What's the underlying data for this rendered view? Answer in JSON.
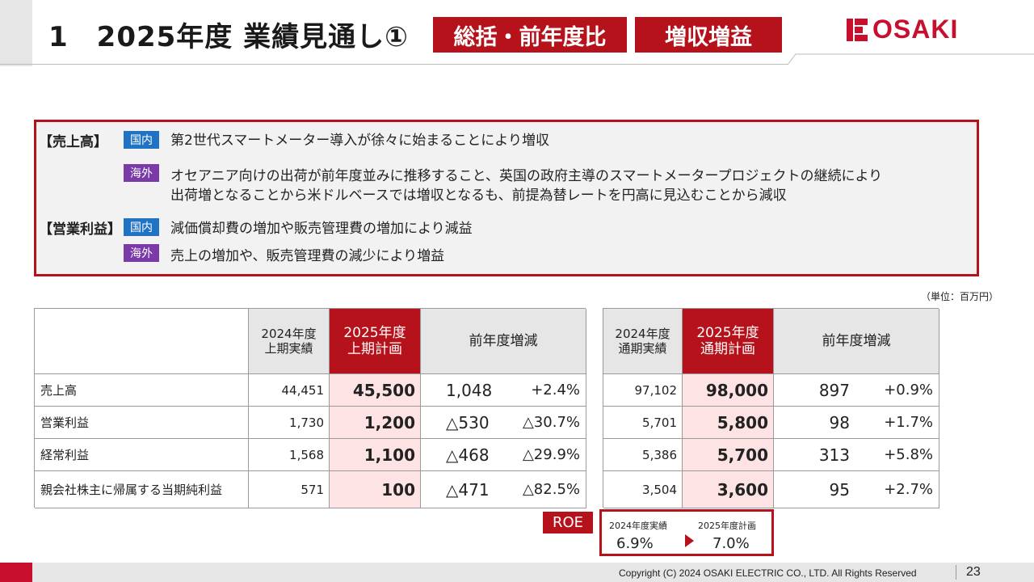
{
  "header": {
    "title": "1　2025年度 業績見通し①",
    "tag_summary": "総括・前年度比",
    "tag_result": "増収増益",
    "logo_text": "OSAKI",
    "accent_color": "#b5121b"
  },
  "summary": {
    "sales_label": "【売上高】",
    "op_label": "【営業利益】",
    "domestic_badge": "国内",
    "overseas_badge": "海外",
    "sales_domestic": "第2世代スマートメーター導入が徐々に始まることにより増収",
    "sales_overseas_1": "オセアニア向けの出荷が前年度並みに推移すること、英国の政府主導のスマートメータープロジェクトの継続により",
    "sales_overseas_2": "出荷増となることから米ドルベースでは増収となるも、前提為替レートを円高に見込むことから減収",
    "op_domestic": "減価償却費の増加や販売管理費の増加により減益",
    "op_overseas": "売上の増加や、販売管理費の減少により増益"
  },
  "unit_note": "（単位：百万円）",
  "table": {
    "h_2024_half_1": "2024年度",
    "h_2024_half_2": "上期実績",
    "h_2025_half_1": "2025年度",
    "h_2025_half_2": "上期計画",
    "h_change": "前年度増減",
    "h_2024_full_1": "2024年度",
    "h_2024_full_2": "通期実績",
    "h_2025_full_1": "2025年度",
    "h_2025_full_2": "通期計画",
    "rows": [
      {
        "label": "売上高",
        "h24": "44,451",
        "h25": "45,500",
        "hd": "1,048",
        "hp": "+2.4%",
        "f24": "97,102",
        "f25": "98,000",
        "fd": "897",
        "fp": "+0.9%"
      },
      {
        "label": "営業利益",
        "h24": "1,730",
        "h25": "1,200",
        "hd": "△530",
        "hp": "△30.7%",
        "f24": "5,701",
        "f25": "5,800",
        "fd": "98",
        "fp": "+1.7%"
      },
      {
        "label": "経常利益",
        "h24": "1,568",
        "h25": "1,100",
        "hd": "△468",
        "hp": "△29.9%",
        "f24": "5,386",
        "f25": "5,700",
        "fd": "313",
        "fp": "+5.8%"
      },
      {
        "label": "親会社株主に帰属する当期純利益",
        "h24": "571",
        "h25": "100",
        "hd": "△471",
        "hp": "△82.5%",
        "f24": "3,504",
        "f25": "3,600",
        "fd": "95",
        "fp": "+2.7%"
      }
    ]
  },
  "roe": {
    "tag": "ROE",
    "prev_label": "2024年度実績",
    "prev_value": "6.9%",
    "plan_label": "2025年度計画",
    "plan_value": "7.0%"
  },
  "footer": {
    "copyright": "Copyright (C) 2024 OSAKI ELECTRIC CO., LTD. All Rights Reserved",
    "page": "23"
  }
}
